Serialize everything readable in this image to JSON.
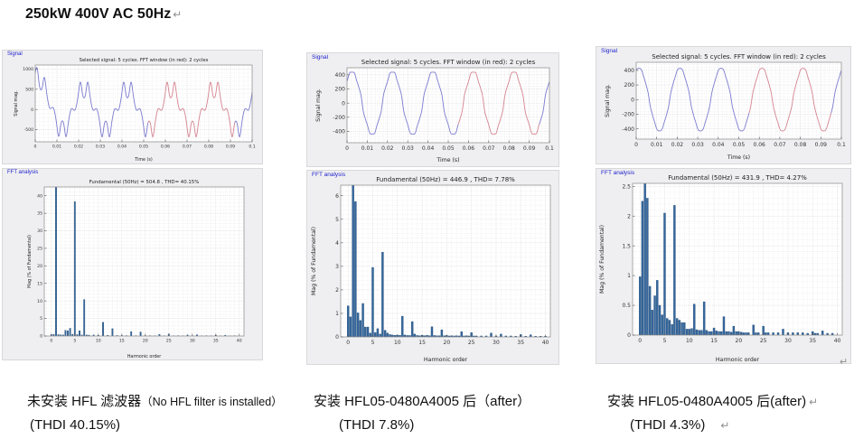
{
  "page": {
    "title": "250kW 400V AC 50Hz",
    "return_mark": "↵"
  },
  "colors": {
    "panel_bg": "#efeff1",
    "panel_border": "#d8d8da",
    "panel_label": "#2222cc",
    "waveform_blue": "#7b7bd0",
    "fft_window_red": "#d4848f",
    "bar_fill": "#35689f",
    "bar_edge": "#234c77",
    "grid": "#e3e3e6",
    "axis_frame": "#8a8a8a"
  },
  "panels": [
    {
      "signal_label": "Signal",
      "fft_label": "FFT analysis"
    },
    {
      "signal_label": "Signal",
      "fft_label": "FFT analysis"
    },
    {
      "signal_label": "Signal",
      "fft_label": "FFT analysis"
    }
  ],
  "captions": [
    {
      "line1_zh": "未安装 HFL 滤波器",
      "line1_en": "（No HFL filter is installed）",
      "line2": "(THDI 40.15%)"
    },
    {
      "line1_zh": "安装 HFL05-0480A4005 后",
      "line1_en": "（after）",
      "line2": "(THDI 7.8%)"
    },
    {
      "line1_zh": "安装 HFL05-0480A4005 后",
      "line1_en": "(after)",
      "line2": "(THDI 4.3%)"
    }
  ],
  "chart_data": [
    {
      "type": "line",
      "panel": "signal-1",
      "title": "Selected signal: 5 cycles. FFT window (in red): 2 cycles",
      "xlabel": "Time (s)",
      "ylabel": "Signal mag.",
      "xlim": [
        0,
        0.1
      ],
      "ylim": [
        -800,
        1100
      ],
      "xticks": [
        0,
        0.01,
        0.02,
        0.03,
        0.04,
        0.05,
        0.06,
        0.07,
        0.08,
        0.09,
        0.1
      ],
      "yticks": [
        -500,
        0,
        500,
        1000
      ],
      "cycles": 5,
      "frequency_hz": 50,
      "fundamental_peak": 504.8,
      "phase_rad": 0.785,
      "harmonics": [
        [
          1,
          1
        ],
        [
          5,
          -0.383
        ],
        [
          7,
          0.104
        ],
        [
          11,
          -0.039
        ],
        [
          13,
          0.021
        ]
      ],
      "transient": {
        "amp": 470,
        "tau": 0.003
      },
      "fft_window_red": [
        0.052,
        0.092
      ],
      "line_color": "#7b7bd0",
      "window_color": "#d4848f"
    },
    {
      "type": "bar",
      "panel": "fft-1",
      "title": "Fundamental (50Hz) = 504.8 , THD= 40.15%",
      "xlabel": "Harmonic order",
      "ylabel": "Mag (% of Fundamental)",
      "xlim": [
        -1.5,
        41
      ],
      "ylim": [
        0,
        42.5
      ],
      "xticks": [
        0,
        5,
        10,
        15,
        20,
        25,
        30,
        35,
        40
      ],
      "yticks": [
        0,
        5,
        10,
        15,
        20,
        25,
        30,
        35,
        40
      ],
      "bar_color": "#35689f",
      "bar_edge": "#234c77",
      "bars": [
        [
          0,
          0.4
        ],
        [
          0.5,
          0.45
        ],
        [
          1,
          42.5
        ],
        [
          1.5,
          0.4
        ],
        [
          2,
          0.35
        ],
        [
          2.5,
          0.3
        ],
        [
          3,
          1.6
        ],
        [
          3.5,
          1.5
        ],
        [
          4,
          2.2
        ],
        [
          4.5,
          0.5
        ],
        [
          5,
          38.3
        ],
        [
          5.5,
          0.4
        ],
        [
          6,
          1.5
        ],
        [
          6.5,
          0.3
        ],
        [
          7,
          10.4
        ],
        [
          7.5,
          0.3
        ],
        [
          8,
          0.25
        ],
        [
          9,
          0.3
        ],
        [
          10,
          0.2
        ],
        [
          11,
          3.9
        ],
        [
          12,
          0.2
        ],
        [
          13,
          2.1
        ],
        [
          14,
          0.15
        ],
        [
          15,
          0.15
        ],
        [
          16,
          0.1
        ],
        [
          17,
          1.25
        ],
        [
          18,
          0.1
        ],
        [
          19,
          1.15
        ],
        [
          20,
          0.1
        ],
        [
          21,
          0.1
        ],
        [
          22,
          0.08
        ],
        [
          23,
          0.45
        ],
        [
          24,
          0.08
        ],
        [
          25,
          0.6
        ],
        [
          26,
          0.08
        ],
        [
          27,
          0.1
        ],
        [
          28,
          0.08
        ],
        [
          29,
          0.3
        ],
        [
          30,
          0.08
        ],
        [
          31,
          0.35
        ],
        [
          32,
          0.06
        ],
        [
          33,
          0.1
        ],
        [
          34,
          0.06
        ],
        [
          35,
          0.25
        ],
        [
          36,
          0.06
        ],
        [
          37,
          0.2
        ],
        [
          38,
          0.05
        ],
        [
          39,
          0.1
        ]
      ]
    },
    {
      "type": "line",
      "panel": "signal-2",
      "title": "Selected signal: 5 cycles. FFT window (in red): 2 cycles",
      "xlabel": "Time (s)",
      "ylabel": "Signal mag.",
      "xlim": [
        0,
        0.1
      ],
      "ylim": [
        -560,
        500
      ],
      "xticks": [
        0,
        0.01,
        0.02,
        0.03,
        0.04,
        0.05,
        0.06,
        0.07,
        0.08,
        0.09,
        0.1
      ],
      "yticks": [
        -400,
        -200,
        0,
        200,
        400
      ],
      "cycles": 5,
      "frequency_hz": 50,
      "fundamental_peak": 446.9,
      "phase_rad": 0.8,
      "harmonics": [
        [
          1,
          1
        ],
        [
          3,
          0.014
        ],
        [
          5,
          0.0295
        ],
        [
          7,
          0.036
        ],
        [
          11,
          0.0088
        ],
        [
          13,
          0.0065
        ]
      ],
      "transient": null,
      "fft_window_red": [
        0.055,
        0.095
      ],
      "line_color": "#7b7bd0",
      "window_color": "#d4848f"
    },
    {
      "type": "bar",
      "panel": "fft-2",
      "title": "Fundamental (50Hz) = 446.9 , THD= 7.78%",
      "xlabel": "Harmonic order",
      "ylabel": "Mag (% of Fundamental)",
      "xlim": [
        -1.5,
        41
      ],
      "ylim": [
        0,
        6.45
      ],
      "xticks": [
        0,
        5,
        10,
        15,
        20,
        25,
        30,
        35,
        40
      ],
      "yticks": [
        0,
        1,
        2,
        3,
        4,
        5,
        6
      ],
      "bar_color": "#35689f",
      "bar_edge": "#234c77",
      "bars": [
        [
          0,
          1.32
        ],
        [
          0.5,
          0.85
        ],
        [
          1,
          6.45
        ],
        [
          1.5,
          5.75
        ],
        [
          2,
          1.02
        ],
        [
          2.5,
          0.7
        ],
        [
          3,
          1.42
        ],
        [
          3.5,
          0.42
        ],
        [
          4,
          0.42
        ],
        [
          4.5,
          0.16
        ],
        [
          5,
          2.95
        ],
        [
          5.5,
          0.18
        ],
        [
          6,
          0.35
        ],
        [
          6.5,
          0.12
        ],
        [
          7,
          3.6
        ],
        [
          7.5,
          0.28
        ],
        [
          8,
          0.16
        ],
        [
          8.5,
          0.1
        ],
        [
          9,
          0.08
        ],
        [
          9.5,
          0.07
        ],
        [
          10,
          0.08
        ],
        [
          10.5,
          0.07
        ],
        [
          11,
          0.88
        ],
        [
          11.5,
          0.08
        ],
        [
          12,
          0.06
        ],
        [
          12.5,
          0.06
        ],
        [
          13,
          0.65
        ],
        [
          13.5,
          0.12
        ],
        [
          14,
          0.06
        ],
        [
          14.5,
          0.05
        ],
        [
          15,
          0.07
        ],
        [
          15.5,
          0.05
        ],
        [
          16,
          0.07
        ],
        [
          16.5,
          0.05
        ],
        [
          17,
          0.43
        ],
        [
          17.5,
          0.06
        ],
        [
          18,
          0.05
        ],
        [
          18.5,
          0.05
        ],
        [
          19,
          0.3
        ],
        [
          19.5,
          0.05
        ],
        [
          20,
          0.06
        ],
        [
          20.5,
          0.04
        ],
        [
          21,
          0.05
        ],
        [
          21.5,
          0.04
        ],
        [
          22,
          0.05
        ],
        [
          22.5,
          0.04
        ],
        [
          23,
          0.22
        ],
        [
          23.5,
          0.04
        ],
        [
          24,
          0.05
        ],
        [
          24.5,
          0.04
        ],
        [
          25,
          0.18
        ],
        [
          25.5,
          0.04
        ],
        [
          26,
          0.04
        ],
        [
          27,
          0.04
        ],
        [
          28,
          0.04
        ],
        [
          29,
          0.16
        ],
        [
          30,
          0.04
        ],
        [
          31,
          0.12
        ],
        [
          32,
          0.04
        ],
        [
          33,
          0.04
        ],
        [
          34,
          0.03
        ],
        [
          35,
          0.1
        ],
        [
          36,
          0.03
        ],
        [
          37,
          0.09
        ],
        [
          38,
          0.03
        ],
        [
          39,
          0.03
        ],
        [
          40,
          0.03
        ]
      ]
    },
    {
      "type": "line",
      "panel": "signal-3",
      "title": "Selected signal: 5 cycles. FFT window (in red): 2 cycles",
      "xlabel": "Time (s)",
      "ylabel": "Signal mag.",
      "xlim": [
        0,
        0.1
      ],
      "ylim": [
        -540,
        510
      ],
      "xticks": [
        0,
        0.01,
        0.02,
        0.03,
        0.04,
        0.05,
        0.06,
        0.07,
        0.08,
        0.09,
        0.1
      ],
      "yticks": [
        -400,
        -200,
        0,
        200,
        400
      ],
      "cycles": 5,
      "frequency_hz": 50,
      "fundamental_peak": 431.9,
      "phase_rad": 1.15,
      "harmonics": [
        [
          1,
          1
        ],
        [
          3,
          0.0066
        ],
        [
          5,
          0.0205
        ],
        [
          7,
          0.0218
        ],
        [
          11,
          0.0052
        ],
        [
          13,
          0.0056
        ]
      ],
      "transient": null,
      "fft_window_red": [
        0.055,
        0.095
      ],
      "line_color": "#7b7bd0",
      "window_color": "#d4848f"
    },
    {
      "type": "bar",
      "panel": "fft-3",
      "title": "Fundamental (50Hz) = 431.9 , THD= 4.27%",
      "xlabel": "Harmonic order",
      "ylabel": "Mag (% of Fundamental)",
      "xlim": [
        -1.5,
        41
      ],
      "ylim": [
        0,
        2.55
      ],
      "xticks": [
        0,
        5,
        10,
        15,
        20,
        25,
        30,
        35,
        40
      ],
      "yticks": [
        0,
        0.5,
        1,
        1.5,
        2,
        2.5
      ],
      "bar_color": "#35689f",
      "bar_edge": "#234c77",
      "bars": [
        [
          0,
          0.98
        ],
        [
          0.5,
          2.25
        ],
        [
          1,
          2.55
        ],
        [
          1.5,
          2.3
        ],
        [
          2,
          0.82
        ],
        [
          2.5,
          0.42
        ],
        [
          3,
          0.66
        ],
        [
          3.5,
          0.92
        ],
        [
          4,
          0.5
        ],
        [
          4.5,
          0.34
        ],
        [
          5,
          2.05
        ],
        [
          5.5,
          0.28
        ],
        [
          6,
          0.25
        ],
        [
          6.5,
          0.18
        ],
        [
          7,
          2.18
        ],
        [
          7.5,
          0.28
        ],
        [
          8,
          0.25
        ],
        [
          8.5,
          0.21
        ],
        [
          9,
          0.21
        ],
        [
          9.5,
          0.1
        ],
        [
          10,
          0.1
        ],
        [
          10.5,
          0.11
        ],
        [
          11,
          0.52
        ],
        [
          11.5,
          0.09
        ],
        [
          12,
          0.08
        ],
        [
          12.5,
          0.08
        ],
        [
          13,
          0.56
        ],
        [
          13.5,
          0.08
        ],
        [
          14,
          0.06
        ],
        [
          14.5,
          0.06
        ],
        [
          15,
          0.12
        ],
        [
          15.5,
          0.07
        ],
        [
          16,
          0.06
        ],
        [
          16.5,
          0.06
        ],
        [
          17,
          0.31
        ],
        [
          17.5,
          0.06
        ],
        [
          18,
          0.06
        ],
        [
          18.5,
          0.05
        ],
        [
          19,
          0.15
        ],
        [
          19.5,
          0.06
        ],
        [
          20,
          0.06
        ],
        [
          20.5,
          0.05
        ],
        [
          21,
          0.04
        ],
        [
          21.5,
          0.04
        ],
        [
          22,
          0.04
        ],
        [
          23,
          0.17
        ],
        [
          23.5,
          0.04
        ],
        [
          24,
          0.04
        ],
        [
          25,
          0.15
        ],
        [
          25.5,
          0.04
        ],
        [
          26,
          0.04
        ],
        [
          27,
          0.04
        ],
        [
          28,
          0.04
        ],
        [
          29,
          0.1
        ],
        [
          30,
          0.04
        ],
        [
          31,
          0.04
        ],
        [
          32,
          0.04
        ],
        [
          33,
          0.04
        ],
        [
          34,
          0.03
        ],
        [
          35,
          0.06
        ],
        [
          35.5,
          0.03
        ],
        [
          36,
          0.03
        ],
        [
          37,
          0.07
        ],
        [
          38,
          0.03
        ],
        [
          39,
          0.03
        ]
      ]
    }
  ]
}
